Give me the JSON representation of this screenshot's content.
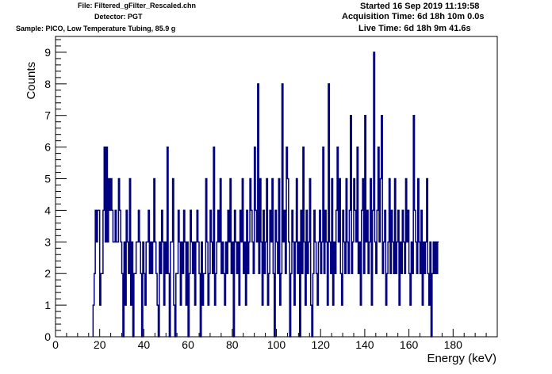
{
  "header": {
    "file": "File: Filtered_gFilter_Rescaled.chn",
    "detector": "Detector: PGT",
    "sample": "Sample: PICO, Low Temperature Tubing, 85.9 g",
    "started": "Started 16 Sep 2019 11:19:58",
    "acquisition": "Acquisition Time: 6d 18h 10m 0.0s",
    "live": "Live Time: 6d 18h 9m 41.6s"
  },
  "chart_data": {
    "type": "histogram",
    "title": "",
    "xlabel": "Energy (keV)",
    "ylabel": "Counts",
    "xlim": [
      0,
      200
    ],
    "ylim": [
      0,
      9.5
    ],
    "xticks": [
      0,
      20,
      40,
      60,
      80,
      100,
      120,
      140,
      160,
      180
    ],
    "yticks": [
      0,
      1,
      2,
      3,
      4,
      5,
      6,
      7,
      8,
      9
    ],
    "grid": false,
    "legend": "none",
    "line_color": "#000080",
    "bin_width": 0.5,
    "bins_start": 17.0,
    "values": [
      1,
      2,
      4,
      3,
      4,
      4,
      1,
      2,
      2,
      4,
      6,
      3,
      6,
      3,
      5,
      4,
      5,
      4,
      3,
      3,
      4,
      3,
      3,
      5,
      4,
      3,
      2,
      0,
      3,
      1,
      4,
      3,
      2,
      5,
      1,
      3,
      0,
      2,
      2,
      3,
      3,
      4,
      3,
      2,
      0,
      3,
      2,
      1,
      3,
      3,
      4,
      2,
      3,
      2,
      3,
      5,
      3,
      2,
      1,
      0,
      3,
      2,
      4,
      3,
      1,
      3,
      2,
      6,
      2,
      0,
      3,
      3,
      5,
      1,
      0,
      2,
      2,
      4,
      3,
      1,
      3,
      2,
      4,
      3,
      1,
      3,
      0,
      2,
      4,
      3,
      2,
      3,
      1,
      3,
      4,
      3,
      2,
      0,
      3,
      1,
      2,
      2,
      5,
      3,
      1,
      2,
      4,
      3,
      2,
      6,
      1,
      2,
      3,
      4,
      3,
      5,
      2,
      3,
      2,
      1,
      3,
      2,
      4,
      3,
      5,
      2,
      3,
      0,
      4,
      3,
      2,
      3,
      1,
      4,
      3,
      5,
      2,
      3,
      1,
      4,
      2,
      3,
      5,
      4,
      3,
      2,
      6,
      4,
      3,
      8,
      2,
      5,
      3,
      1,
      4,
      2,
      3,
      5,
      1,
      2,
      4,
      3,
      5,
      2,
      0,
      4,
      3,
      2,
      5,
      1,
      2,
      8,
      3,
      4,
      2,
      6,
      5,
      3,
      0,
      2,
      4,
      3,
      1,
      3,
      5,
      2,
      3,
      0,
      4,
      2,
      6,
      3,
      1,
      4,
      2,
      3,
      5,
      1,
      0,
      2,
      4,
      3,
      2,
      1,
      3,
      4,
      2,
      3,
      6,
      2,
      4,
      3,
      1,
      8,
      3,
      2,
      5,
      1,
      3,
      2,
      4,
      6,
      3,
      5,
      2,
      1,
      4,
      3,
      2,
      5,
      3,
      2,
      4,
      7,
      2,
      3,
      5,
      4,
      3,
      6,
      2,
      3,
      1,
      4,
      5,
      2,
      7,
      3,
      4,
      2,
      3,
      5,
      1,
      4,
      9,
      3,
      2,
      4,
      6,
      3,
      5,
      7,
      2,
      3,
      4,
      1,
      2,
      3,
      5,
      2,
      4,
      3,
      2,
      5,
      2,
      3,
      4,
      1,
      3,
      2,
      4,
      3,
      2,
      5,
      3,
      4,
      2,
      1,
      3,
      2,
      7,
      4,
      3,
      2,
      5,
      3,
      2,
      4,
      1,
      3,
      2,
      3,
      5,
      2,
      1,
      3,
      0,
      2,
      3,
      2,
      3,
      2,
      3
    ]
  }
}
